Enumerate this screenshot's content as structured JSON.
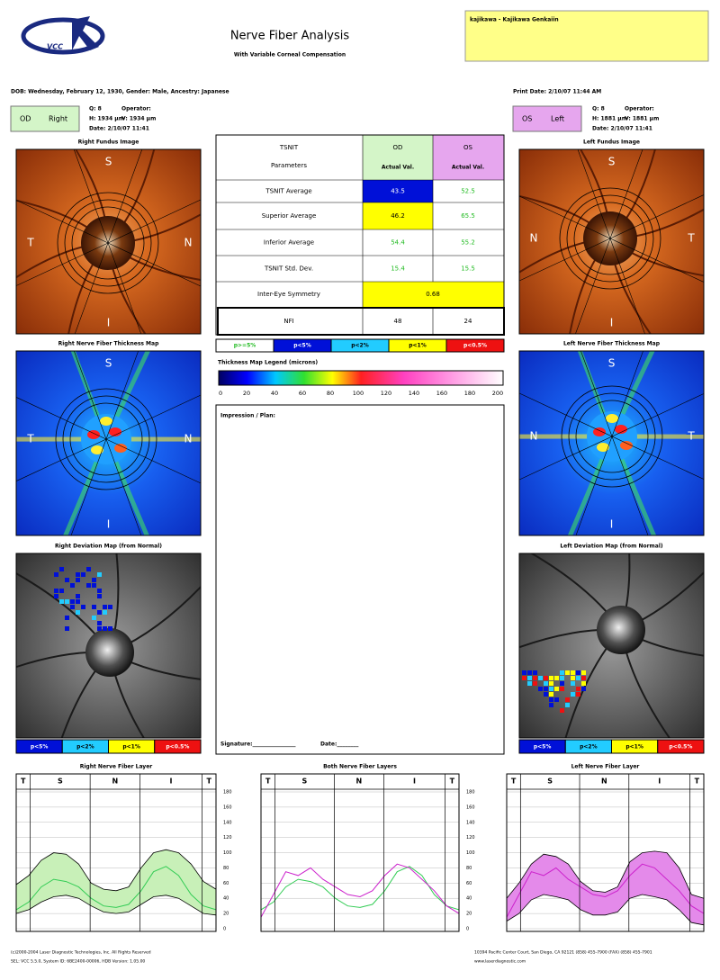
{
  "header": {
    "logo": "VCC",
    "title": "Nerve Fiber Analysis",
    "subtitle": "With Variable Corneal Compensation",
    "clinic": "kajikawa - Kajikawa Genkaiin",
    "dob": "DOB: Wednesday, February 12, 1930, Gender: Male, Ancestry: Japanese",
    "print_date": "Print Date: 2/10/07 11:44 AM"
  },
  "od": {
    "eye": "OD",
    "side": "Right",
    "q": "Q: 8",
    "operator": "Operator:",
    "h": "H: 1934 µm",
    "v": "V: 1934 µm",
    "date": "Date: 2/10/07 11:41",
    "color": "#d4f5c8"
  },
  "os": {
    "eye": "OS",
    "side": "Left",
    "q": "Q: 8",
    "operator": "Operator:",
    "h": "H: 1881 µm",
    "v": "V: 1881 µm",
    "date": "Date: 2/10/07 11:41",
    "color": "#e6a6ee"
  },
  "panels": {
    "right_fundus": "Right Fundus Image",
    "left_fundus": "Left Fundus Image",
    "right_thickness": "Right Nerve Fiber Thickness Map",
    "left_thickness": "Left Nerve Fiber Thickness Map",
    "right_deviation": "Right Deviation Map (from Normal)",
    "left_deviation": "Left Deviation Map (from Normal)"
  },
  "orientation": {
    "s": "S",
    "t": "T",
    "n": "N",
    "i": "I"
  },
  "table": {
    "param_header": [
      "TSNIT",
      "Parameters"
    ],
    "od_header": [
      "OD",
      "Actual Val."
    ],
    "os_header": [
      "OS",
      "Actual Val."
    ],
    "rows": [
      {
        "label": "TSNIT Average",
        "od": "43.5",
        "os": "52.5",
        "od_fill": "#0010d8",
        "od_text": "#ffffff",
        "os_text": "#22bb22"
      },
      {
        "label": "Superior Average",
        "od": "46.2",
        "os": "65.5",
        "od_fill": "#ffff00",
        "od_text": "#000000",
        "os_text": "#22bb22"
      },
      {
        "label": "Inferior Average",
        "od": "54.4",
        "os": "55.2",
        "od_text": "#22bb22",
        "os_text": "#22bb22"
      },
      {
        "label": "TSNIT Std. Dev.",
        "od": "15.4",
        "os": "15.5",
        "od_text": "#22bb22",
        "os_text": "#22bb22"
      }
    ],
    "symmetry": {
      "label": "Inter-Eye Symmetry",
      "value": "0.68",
      "fill": "#ffff00"
    },
    "nfi": {
      "label": "NFI",
      "od": "48",
      "os": "24"
    }
  },
  "legend": [
    {
      "label": "p>=5%",
      "fill": "#ffffff",
      "text": "#22bb22"
    },
    {
      "label": "p<5%",
      "fill": "#0010d8",
      "text": "#ffffff"
    },
    {
      "label": "p<2%",
      "fill": "#22ccff",
      "text": "#000000"
    },
    {
      "label": "p<1%",
      "fill": "#ffff00",
      "text": "#000000"
    },
    {
      "label": "p<0.5%",
      "fill": "#ee1111",
      "text": "#ffffff"
    }
  ],
  "thickness_legend": {
    "title": "Thickness Map Legend (microns)",
    "ticks": [
      0,
      20,
      40,
      60,
      80,
      100,
      120,
      140,
      160,
      180,
      200
    ]
  },
  "impression": {
    "label": "Impression / Plan:",
    "signature": "Signature:________________",
    "date": "Date:________"
  },
  "chart_data": [
    {
      "type": "line",
      "title": "Right Nerve Fiber Layer",
      "sections": [
        "T",
        "S",
        "N",
        "I",
        "T"
      ],
      "x": [
        0,
        1,
        2,
        3,
        4,
        5,
        6,
        7,
        8,
        9,
        10,
        11,
        12,
        13,
        14,
        15,
        16
      ],
      "xlim": [
        0,
        16
      ],
      "ylim": [
        0,
        180
      ],
      "yticks": [
        0,
        20,
        40,
        60,
        80,
        100,
        120,
        140,
        160,
        180
      ],
      "ytick_labels": true,
      "grid": true,
      "band": {
        "color": "#c8f0b8",
        "edge": "#000000",
        "upper": [
          58,
          70,
          90,
          100,
          98,
          85,
          60,
          52,
          50,
          55,
          80,
          100,
          104,
          100,
          85,
          62,
          52
        ],
        "lower": [
          20,
          25,
          35,
          42,
          44,
          40,
          30,
          22,
          20,
          22,
          32,
          42,
          44,
          40,
          30,
          20,
          18
        ]
      },
      "series": [
        {
          "color": "#33cc55",
          "values": [
            25,
            35,
            55,
            65,
            62,
            55,
            40,
            30,
            28,
            32,
            50,
            75,
            82,
            70,
            45,
            30,
            25
          ]
        }
      ]
    },
    {
      "type": "line",
      "title": "Both Nerve Fiber Layers",
      "sections": [
        "T",
        "S",
        "N",
        "I",
        "T"
      ],
      "x": [
        0,
        1,
        2,
        3,
        4,
        5,
        6,
        7,
        8,
        9,
        10,
        11,
        12,
        13,
        14,
        15,
        16
      ],
      "xlim": [
        0,
        16
      ],
      "ylim": [
        0,
        180
      ],
      "yticks": [
        0,
        20,
        40,
        60,
        80,
        100,
        120,
        140,
        160,
        180
      ],
      "ytick_labels": true,
      "grid": true,
      "series": [
        {
          "color": "#33cc55",
          "values": [
            25,
            35,
            55,
            65,
            62,
            55,
            40,
            30,
            28,
            32,
            50,
            75,
            82,
            70,
            45,
            30,
            25
          ]
        },
        {
          "color": "#cc22cc",
          "values": [
            15,
            45,
            75,
            70,
            80,
            65,
            55,
            45,
            42,
            50,
            70,
            85,
            80,
            65,
            50,
            30,
            20
          ]
        }
      ]
    },
    {
      "type": "line",
      "title": "Left Nerve Fiber Layer",
      "sections": [
        "T",
        "S",
        "N",
        "I",
        "T"
      ],
      "x": [
        0,
        1,
        2,
        3,
        4,
        5,
        6,
        7,
        8,
        9,
        10,
        11,
        12,
        13,
        14,
        15,
        16
      ],
      "xlim": [
        0,
        16
      ],
      "ylim": [
        0,
        180
      ],
      "yticks": [
        0,
        20,
        40,
        60,
        80,
        100,
        120,
        140,
        160,
        180
      ],
      "ytick_labels": false,
      "grid": true,
      "band": {
        "color": "#e48aea",
        "edge": "#000000",
        "upper": [
          40,
          60,
          85,
          98,
          95,
          85,
          62,
          50,
          48,
          55,
          88,
          100,
          102,
          100,
          80,
          45,
          40
        ],
        "lower": [
          10,
          20,
          38,
          45,
          42,
          38,
          25,
          18,
          18,
          22,
          40,
          45,
          42,
          38,
          25,
          8,
          5
        ]
      },
      "series": [
        {
          "color": "#cc22cc",
          "values": [
            15,
            45,
            75,
            70,
            80,
            65,
            55,
            45,
            42,
            50,
            70,
            85,
            80,
            65,
            50,
            30,
            20
          ]
        }
      ]
    }
  ],
  "footer": {
    "copyright": "(c)2000-2004 Laser Diagnostic Technologies, Inc. All Rights Reserved",
    "system": "SEL: VCC 5.5.0, System ID: 6BE2400-00006, HDB Version: 1.05.00",
    "address": "10394 Pacific Center Court, San Diego, CA 92121 (858) 455-7900 (FAX) (858) 455-7901",
    "web": "www.laserdiagnostic.com"
  }
}
